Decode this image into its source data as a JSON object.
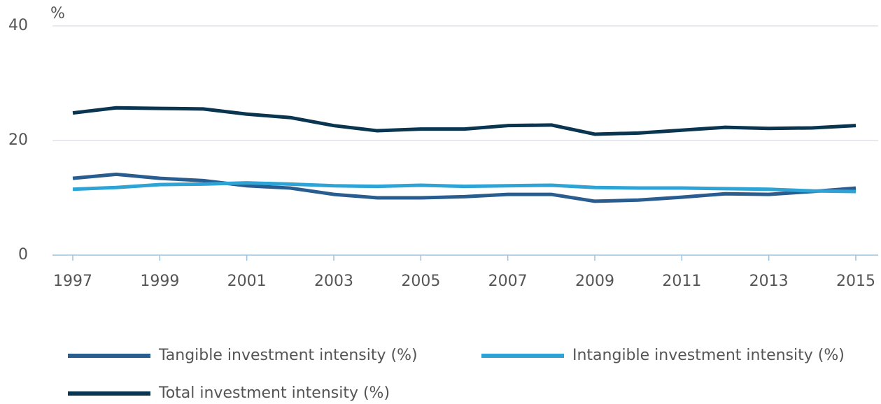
{
  "chart_data": {
    "type": "line",
    "y_label": "%",
    "x": [
      1997,
      1998,
      1999,
      2000,
      2001,
      2002,
      2003,
      2004,
      2005,
      2006,
      2007,
      2008,
      2009,
      2010,
      2011,
      2012,
      2013,
      2014,
      2015
    ],
    "xlim": [
      1997,
      2015
    ],
    "xticks": [
      1997,
      1999,
      2001,
      2003,
      2005,
      2007,
      2009,
      2011,
      2013,
      2015
    ],
    "ylim": [
      0,
      40
    ],
    "yticks": [
      0,
      20,
      40
    ],
    "grid": true,
    "series": [
      {
        "name": "Tangible investment intensity (%)",
        "color": "#2a5d8f",
        "values": [
          13.4,
          14.1,
          13.4,
          13.0,
          12.1,
          11.7,
          10.6,
          10.0,
          10.0,
          10.2,
          10.6,
          10.6,
          9.4,
          9.6,
          10.1,
          10.7,
          10.6,
          11.1,
          11.7
        ]
      },
      {
        "name": "Intangible investment intensity (%)",
        "color": "#2ea3d5",
        "values": [
          11.5,
          11.8,
          12.3,
          12.4,
          12.6,
          12.4,
          12.1,
          12.0,
          12.2,
          12.0,
          12.1,
          12.2,
          11.8,
          11.7,
          11.7,
          11.6,
          11.5,
          11.2,
          11.1
        ]
      },
      {
        "name": "Total investment intensity (%)",
        "color": "#0a3550",
        "values": [
          24.8,
          25.7,
          25.6,
          25.5,
          24.6,
          24.0,
          22.6,
          21.7,
          22.0,
          22.0,
          22.6,
          22.7,
          21.1,
          21.3,
          21.8,
          22.3,
          22.1,
          22.2,
          22.6
        ]
      }
    ]
  }
}
